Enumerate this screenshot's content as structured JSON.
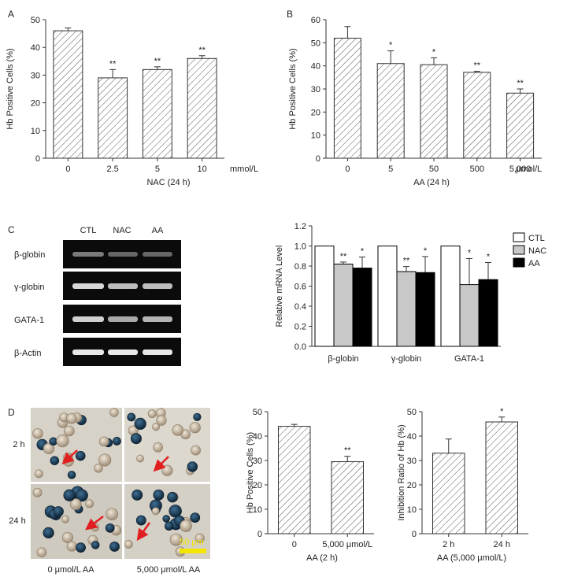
{
  "panel_labels": {
    "a": "A",
    "b": "B",
    "c": "C",
    "d": "D"
  },
  "chart_data": [
    {
      "id": "A",
      "type": "bar",
      "categories": [
        "0",
        "2.5",
        "5",
        "10"
      ],
      "values": [
        46,
        29,
        32,
        36
      ],
      "errors": [
        1.0,
        3.0,
        1.0,
        1.0
      ],
      "significance": [
        "",
        "**",
        "**",
        "**"
      ],
      "ylabel": "Hb Positive Cells (%)",
      "xlabel": "NAC (24 h)",
      "unit_label": "mmol/L",
      "ylim": [
        0,
        50
      ],
      "yticks": [
        0,
        10,
        20,
        30,
        40,
        50
      ],
      "pattern": "hatched"
    },
    {
      "id": "B",
      "type": "bar",
      "categories": [
        "0",
        "5",
        "50",
        "500",
        "5,000"
      ],
      "values": [
        52,
        41,
        40.5,
        37.2,
        28.2
      ],
      "errors": [
        5.0,
        5.5,
        3.0,
        0.4,
        1.8
      ],
      "significance": [
        "",
        "*",
        "*",
        "**",
        "**"
      ],
      "ylabel": "Hb Positive Cells (%)",
      "xlabel": "AA (24 h)",
      "unit_label": "μmol/L",
      "ylim": [
        0,
        60
      ],
      "yticks": [
        0,
        10,
        20,
        30,
        40,
        50,
        60
      ],
      "pattern": "hatched"
    },
    {
      "id": "C-gel",
      "type": "table",
      "columns": [
        "CTL",
        "NAC",
        "AA"
      ],
      "rows": [
        "β-globin",
        "γ-globin",
        "GATA-1",
        "β-Actin"
      ]
    },
    {
      "id": "C-bar",
      "type": "bar",
      "categories": [
        "β-globin",
        "γ-globin",
        "GATA-1"
      ],
      "series": [
        {
          "name": "CTL",
          "color": "#ffffff",
          "values": [
            1.0,
            1.0,
            1.0
          ],
          "errors": [
            0,
            0,
            0
          ],
          "significance": [
            "",
            "",
            ""
          ]
        },
        {
          "name": "NAC",
          "color": "#c8c8c8",
          "values": [
            0.82,
            0.745,
            0.615
          ],
          "errors": [
            0.02,
            0.05,
            0.26
          ],
          "significance": [
            "**",
            "**",
            "*"
          ]
        },
        {
          "name": "AA",
          "color": "#000000",
          "values": [
            0.78,
            0.735,
            0.665
          ],
          "errors": [
            0.11,
            0.16,
            0.17
          ],
          "significance": [
            "*",
            "*",
            "*"
          ]
        }
      ],
      "ylabel": "Relative mRNA Level",
      "ylim": [
        0,
        1.2
      ],
      "yticks": [
        "0.0",
        "0.2",
        "0.4",
        "0.6",
        "0.8",
        "1.0",
        "1.2"
      ],
      "legend_position": "top-right"
    },
    {
      "id": "D-micro",
      "type": "table",
      "rows": [
        "2 h",
        "24 h"
      ],
      "columns": [
        "0 μmol/L AA",
        "5,000 μmol/L AA"
      ],
      "scale_bar": "50 μm"
    },
    {
      "id": "D-bar1",
      "type": "bar",
      "categories": [
        "0",
        "5,000 μmol/L"
      ],
      "values": [
        44,
        29.5
      ],
      "errors": [
        0.8,
        2.2
      ],
      "significance": [
        "",
        "**"
      ],
      "ylabel": "Hb Positive Cells (%)",
      "xlabel": "AA (2 h)",
      "ylim": [
        0,
        50
      ],
      "yticks": [
        0,
        10,
        20,
        30,
        40,
        50
      ],
      "pattern": "hatched"
    },
    {
      "id": "D-bar2",
      "type": "bar",
      "categories": [
        "2 h",
        "24 h"
      ],
      "values": [
        33,
        45.8
      ],
      "errors": [
        5.8,
        2.0
      ],
      "significance": [
        "",
        "*"
      ],
      "ylabel": "Inhibition Ratio of Hb (%)",
      "xlabel": "AA (5,000 μmol/L)",
      "ylim": [
        0,
        50
      ],
      "yticks": [
        0,
        10,
        20,
        30,
        40,
        50
      ],
      "pattern": "hatched"
    }
  ]
}
